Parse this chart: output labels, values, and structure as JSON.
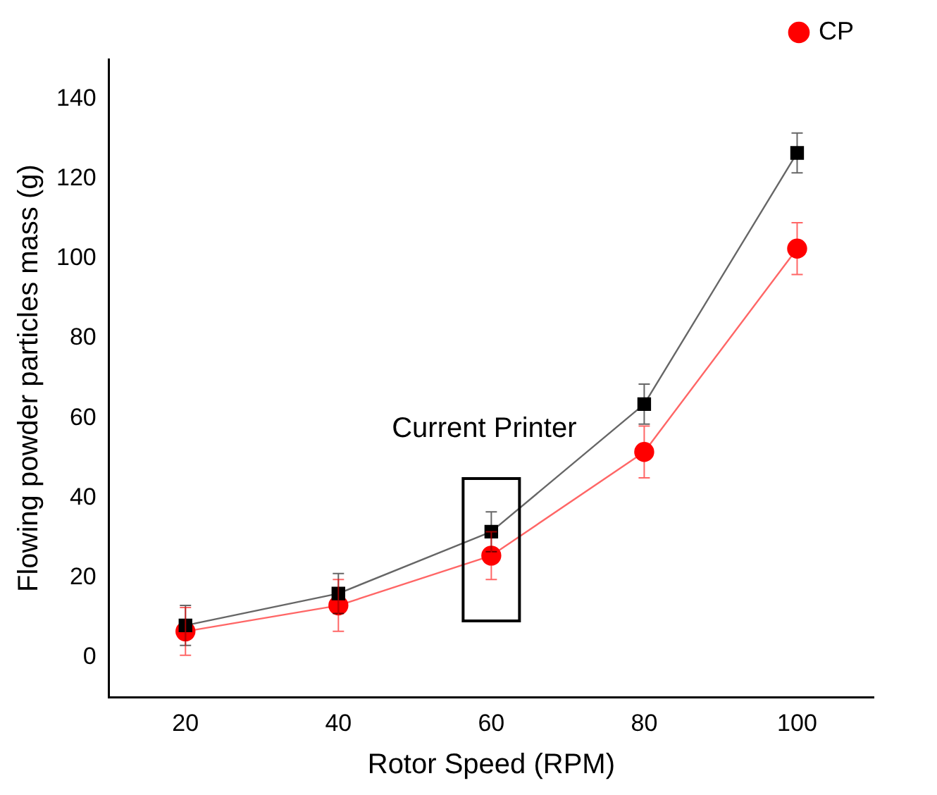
{
  "chart_data": {
    "type": "line",
    "xlabel": "Rotor Speed (RPM)",
    "ylabel": "Flowing powder particles mass (g)",
    "x": [
      20,
      40,
      60,
      80,
      100
    ],
    "series": [
      {
        "color": "#000000",
        "marker": "square",
        "values": [
          8,
          16,
          31.5,
          63.5,
          126.5
        ],
        "errors": [
          5,
          5,
          5,
          5,
          5
        ]
      },
      {
        "name": "CP",
        "color": "#ff0000",
        "marker": "circle",
        "values": [
          6.5,
          13,
          25.5,
          51.5,
          102.5
        ],
        "errors": [
          6,
          6.5,
          6,
          6.5,
          6.5
        ]
      }
    ],
    "xlim": [
      10,
      110
    ],
    "xticks": [
      20,
      40,
      60,
      80,
      100
    ],
    "ylim": [
      -10,
      150
    ],
    "yticks": [
      0,
      20,
      40,
      60,
      80,
      100,
      120,
      140
    ],
    "annotations": [
      "Current Printer"
    ],
    "legend": "top right",
    "grid": false
  }
}
